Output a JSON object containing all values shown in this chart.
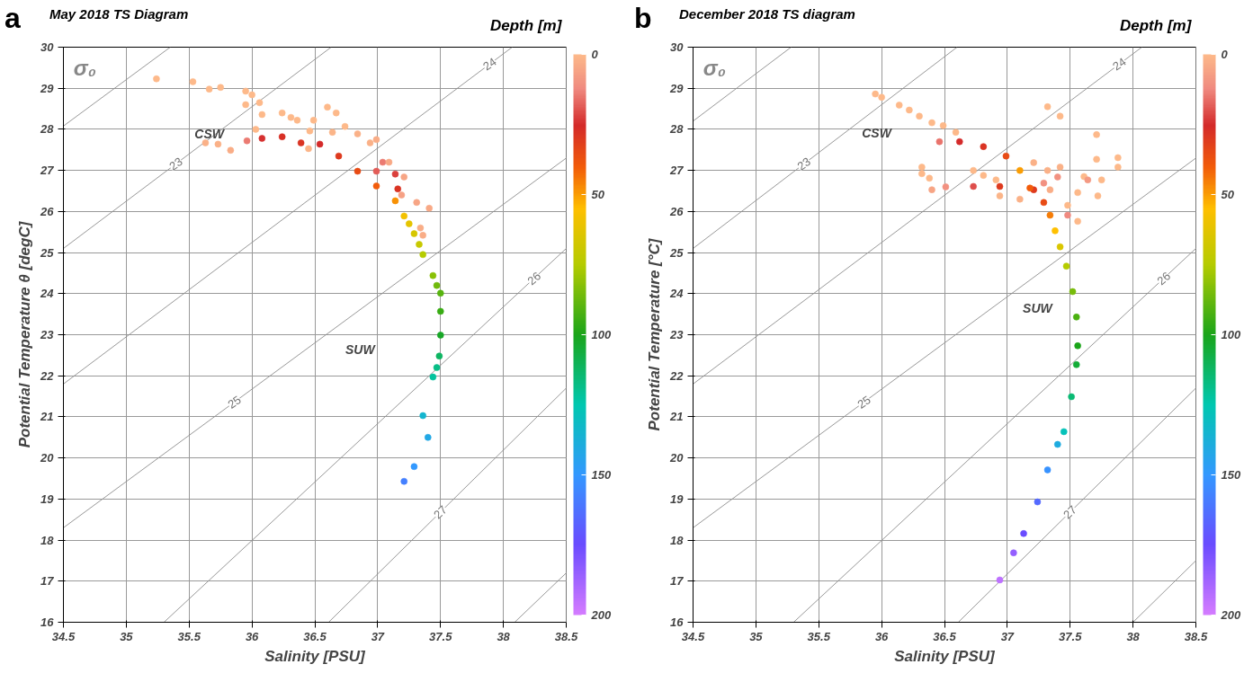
{
  "chart_data": [
    {
      "type": "scatter",
      "title": "May 2018 TS Diagram",
      "xlabel": "Salinity [PSU]",
      "ylabel": "Potential Temperature θ [degC]",
      "clabel": "Depth [m]",
      "xlim": [
        34.5,
        38.5
      ],
      "ylim": [
        16,
        30
      ],
      "xticks": [
        34.5,
        35,
        35.5,
        36,
        36.5,
        37,
        37.5,
        38,
        38.5
      ],
      "yticks": [
        16,
        17,
        18,
        19,
        20,
        21,
        22,
        23,
        24,
        25,
        26,
        27,
        28,
        29,
        30
      ],
      "grid": true,
      "clim": [
        200,
        0
      ],
      "cticks": [
        0,
        50,
        100,
        150,
        200
      ],
      "annotations": [
        "a",
        "σ₀",
        "CSW",
        "SUW"
      ],
      "series": [
        {
          "type": "line",
          "color": "#8c8c8c",
          "x": [
            34.5,
            35.35
          ],
          "values": [
            28.08,
            30
          ]
        },
        {
          "type": "line",
          "color": "#8c8c8c",
          "name": "23",
          "x": [
            34.5,
            36.63
          ],
          "values": [
            25.1,
            30
          ]
        },
        {
          "type": "line",
          "color": "#8c8c8c",
          "name": "24",
          "x": [
            34.5,
            38.07
          ],
          "values": [
            21.8,
            30
          ]
        },
        {
          "type": "line",
          "color": "#8c8c8c",
          "name": "25",
          "x": [
            34.5,
            38.5
          ],
          "values": [
            18.3,
            27.3
          ]
        },
        {
          "type": "line",
          "color": "#8c8c8c",
          "name": "26",
          "x": [
            35.3,
            38.5
          ],
          "values": [
            16,
            25.1
          ]
        },
        {
          "type": "line",
          "color": "#8c8c8c",
          "name": "27",
          "x": [
            36.61,
            38.5
          ],
          "values": [
            16,
            21.7
          ]
        },
        {
          "type": "line",
          "color": "#8c8c8c",
          "x": [
            38.09,
            38.5
          ],
          "values": [
            16,
            17.2
          ]
        },
        {
          "type": "scatter",
          "marker": "circle",
          "colors": [
            "#4480ff",
            "#3399ff",
            "#22a8e5",
            "#14b5cf",
            "#03c39e",
            "#07be86",
            "#0db562",
            "#17a726",
            "#39ac14",
            "#58b40f",
            "#70ba0b",
            "#89c107",
            "#b5cc00",
            "#c7c900",
            "#d6c600",
            "#e5c400",
            "#f3c100",
            "#f89104",
            "#f25c0a",
            "#e84b14",
            "#de3a1f",
            "#d42a2a",
            "#e35d58",
            "#da403d",
            "#da3423",
            "#eb7b72",
            "#da3423",
            "#d83025",
            "#d63130",
            "#eb7b72",
            "#f9ad87",
            "#fab188",
            "#fab188",
            "#fdb98a",
            "#fdb98a",
            "#fdb98a",
            "#fdb98a",
            "#fdb98a",
            "#fdb98a",
            "#fdb98a",
            "#fdb98a",
            "#fdb98a",
            "#fdb98a",
            "#fdb98a",
            "#fdb98a",
            "#fdb98a",
            "#fdb98a",
            "#fdb98a",
            "#fdb98a",
            "#fdb98a",
            "#fab188",
            "#f9ad87",
            "#f8a986",
            "#f7a585",
            "#f6a185",
            "#f7a585",
            "#f8a986",
            "#f9ad87",
            "#f9ad87",
            "#fbb589",
            "#fdb98a",
            "#fbb589",
            "#fab188"
          ],
          "x": [
            37.21,
            37.29,
            37.4,
            37.36,
            37.44,
            37.47,
            37.49,
            37.5,
            37.5,
            37.5,
            37.47,
            37.44,
            37.36,
            37.33,
            37.29,
            37.25,
            37.21,
            37.14,
            36.99,
            36.84,
            36.69,
            36.54,
            36.99,
            37.14,
            37.16,
            37.04,
            36.39,
            36.24,
            36.08,
            35.96,
            35.83,
            35.73,
            35.63,
            35.24,
            35.53,
            35.66,
            35.75,
            35.95,
            36.0,
            36.06,
            35.95,
            36.08,
            36.03,
            36.24,
            36.31,
            36.36,
            36.49,
            36.6,
            36.67,
            36.74,
            36.84,
            36.99,
            37.09,
            37.21,
            37.19,
            37.31,
            37.41,
            37.34,
            37.36,
            36.45,
            36.46,
            36.64,
            36.94
          ],
          "values": [
            19.43,
            19.79,
            20.5,
            21.03,
            21.97,
            22.2,
            22.48,
            22.99,
            23.57,
            24.01,
            24.2,
            24.44,
            24.95,
            25.2,
            25.46,
            25.7,
            25.89,
            26.26,
            26.62,
            26.98,
            27.35,
            27.64,
            26.98,
            26.91,
            26.55,
            27.2,
            27.67,
            27.82,
            27.78,
            27.72,
            27.49,
            27.64,
            27.67,
            29.23,
            29.16,
            28.98,
            29.02,
            28.93,
            28.84,
            28.65,
            28.6,
            28.36,
            28.0,
            28.4,
            28.29,
            28.22,
            28.22,
            28.54,
            28.4,
            28.07,
            27.89,
            27.75,
            27.2,
            26.84,
            26.4,
            26.22,
            26.08,
            25.6,
            25.42,
            27.53,
            27.96,
            27.93,
            27.67
          ],
          "cvalues": [
            158,
            150,
            142,
            135,
            122,
            118,
            112,
            102,
            95,
            90,
            86,
            82,
            75,
            70,
            66,
            62,
            58,
            48,
            40,
            35,
            30,
            25,
            18,
            22,
            28,
            14,
            28,
            27,
            24,
            14,
            3,
            2,
            2,
            0,
            0,
            0,
            0,
            0,
            0,
            0,
            0,
            0,
            0,
            0,
            0,
            0,
            0,
            0,
            0,
            0,
            2,
            3,
            4,
            5,
            6,
            5,
            4,
            3,
            3,
            1,
            0,
            1,
            2
          ]
        }
      ]
    },
    {
      "type": "scatter",
      "title": "December 2018 TS diagram",
      "xlabel": "Salinity [PSU]",
      "ylabel": "Potential Temperature [°C]",
      "clabel": "Depth [m]",
      "xlim": [
        34.5,
        38.5
      ],
      "ylim": [
        16,
        30
      ],
      "xticks": [
        34.5,
        35,
        35.5,
        36,
        36.5,
        37,
        37.5,
        38,
        38.5
      ],
      "yticks": [
        16,
        17,
        18,
        19,
        20,
        21,
        22,
        23,
        24,
        25,
        26,
        27,
        28,
        29,
        30
      ],
      "grid": true,
      "clim": [
        200,
        0
      ],
      "cticks": [
        0,
        50,
        100,
        150,
        200
      ],
      "annotations": [
        "b",
        "σ₀",
        "CSW",
        "SUW"
      ],
      "series": [
        {
          "type": "line",
          "color": "#8c8c8c",
          "x": [
            34.5,
            35.28
          ],
          "values": [
            28.2,
            30
          ]
        },
        {
          "type": "line",
          "color": "#8c8c8c",
          "name": "23",
          "x": [
            34.5,
            36.6
          ],
          "values": [
            25.1,
            30
          ]
        },
        {
          "type": "line",
          "color": "#8c8c8c",
          "name": "24",
          "x": [
            34.5,
            38.07
          ],
          "values": [
            21.8,
            30
          ]
        },
        {
          "type": "line",
          "color": "#8c8c8c",
          "name": "25",
          "x": [
            34.5,
            38.5
          ],
          "values": [
            18.3,
            27.3
          ]
        },
        {
          "type": "line",
          "color": "#8c8c8c",
          "name": "26",
          "x": [
            35.3,
            38.5
          ],
          "values": [
            16,
            25.1
          ]
        },
        {
          "type": "line",
          "color": "#8c8c8c",
          "name": "27",
          "x": [
            36.61,
            38.5
          ],
          "values": [
            16,
            21.7
          ]
        },
        {
          "type": "line",
          "color": "#8c8c8c",
          "x": [
            38.0,
            38.5
          ],
          "values": [
            16,
            17.5
          ]
        },
        {
          "type": "scatter",
          "marker": "circle",
          "colors": [
            "#be72ff",
            "#945fff",
            "#6a4cff",
            "#546aff",
            "#3792ff",
            "#1eabdf",
            "#06c2b9",
            "#0aba74",
            "#14ac38",
            "#1aa51a",
            "#4bb111",
            "#77bc0a",
            "#b5cc00",
            "#dac600",
            "#ffc000",
            "#f67d06",
            "#e84b14",
            "#de3a1f",
            "#fa9e03",
            "#e84b14",
            "#da3423",
            "#d42a2a",
            "#e9736c",
            "#f25c0a",
            "#de3a1f",
            "#de4e4b",
            "#f29181",
            "#f7a585",
            "#fdb98a",
            "#fdb98a",
            "#fdb98a",
            "#fdb98a",
            "#fdb98a",
            "#fdb98a",
            "#fdb98a",
            "#fdb98a",
            "#fdb98a",
            "#fdb98a",
            "#fdb98a",
            "#fdb98a",
            "#fdb98a",
            "#fdb98a",
            "#fdb98a",
            "#fdb98a",
            "#fdb98a",
            "#fdb98a",
            "#fdb98a",
            "#fdb98a",
            "#fdb98a",
            "#fdb98a",
            "#fdb98a",
            "#fdb98a",
            "#fab188",
            "#fab188",
            "#f9ad87",
            "#fdb98a",
            "#fdb98a",
            "#fab188",
            "#fbb589",
            "#fab188",
            "#f29181",
            "#f29181",
            "#f08a80",
            "#f49983"
          ],
          "x": [
            36.94,
            37.05,
            37.13,
            37.24,
            37.32,
            37.4,
            37.45,
            37.51,
            37.55,
            37.56,
            37.55,
            37.52,
            37.47,
            37.42,
            37.38,
            37.34,
            37.29,
            37.21,
            37.1,
            36.99,
            36.81,
            36.62,
            36.46,
            37.18,
            36.94,
            36.73,
            36.51,
            36.4,
            35.95,
            36.0,
            36.14,
            36.22,
            36.3,
            36.4,
            36.49,
            36.59,
            36.32,
            36.32,
            36.38,
            36.73,
            36.81,
            36.91,
            37.32,
            37.42,
            37.71,
            37.71,
            37.88,
            37.88,
            37.75,
            37.72,
            37.56,
            37.48,
            37.42,
            37.32,
            37.34,
            37.61,
            37.56,
            37.21,
            36.94,
            37.1,
            37.29,
            37.4,
            37.48,
            37.64
          ],
          "values": [
            17.03,
            17.69,
            18.16,
            18.93,
            19.71,
            20.33,
            20.64,
            21.49,
            22.27,
            22.73,
            23.43,
            24.05,
            24.67,
            25.14,
            25.53,
            25.91,
            26.22,
            26.53,
            27.0,
            27.35,
            27.58,
            27.7,
            27.7,
            26.57,
            26.61,
            26.61,
            26.6,
            26.53,
            28.86,
            28.78,
            28.59,
            28.47,
            28.32,
            28.16,
            28.09,
            27.93,
            27.08,
            26.92,
            26.81,
            27.0,
            26.88,
            26.77,
            28.55,
            28.32,
            27.87,
            27.27,
            27.08,
            27.31,
            26.77,
            26.38,
            25.76,
            26.15,
            27.08,
            27.0,
            26.53,
            26.85,
            26.46,
            27.19,
            26.38,
            26.3,
            26.69,
            26.84,
            25.91,
            26.77
          ],
          "cvalues": [
            195,
            185,
            175,
            165,
            152,
            140,
            128,
            115,
            105,
            100,
            92,
            85,
            75,
            65,
            55,
            45,
            35,
            30,
            50,
            35,
            28,
            25,
            15,
            40,
            30,
            20,
            10,
            5,
            0,
            0,
            0,
            0,
            0,
            0,
            0,
            0,
            0,
            0,
            0,
            0,
            0,
            0,
            0,
            0,
            0,
            0,
            0,
            0,
            0,
            0,
            0,
            0,
            2,
            2,
            3,
            0,
            0,
            2,
            1,
            2,
            10,
            10,
            12,
            8
          ]
        }
      ]
    }
  ]
}
